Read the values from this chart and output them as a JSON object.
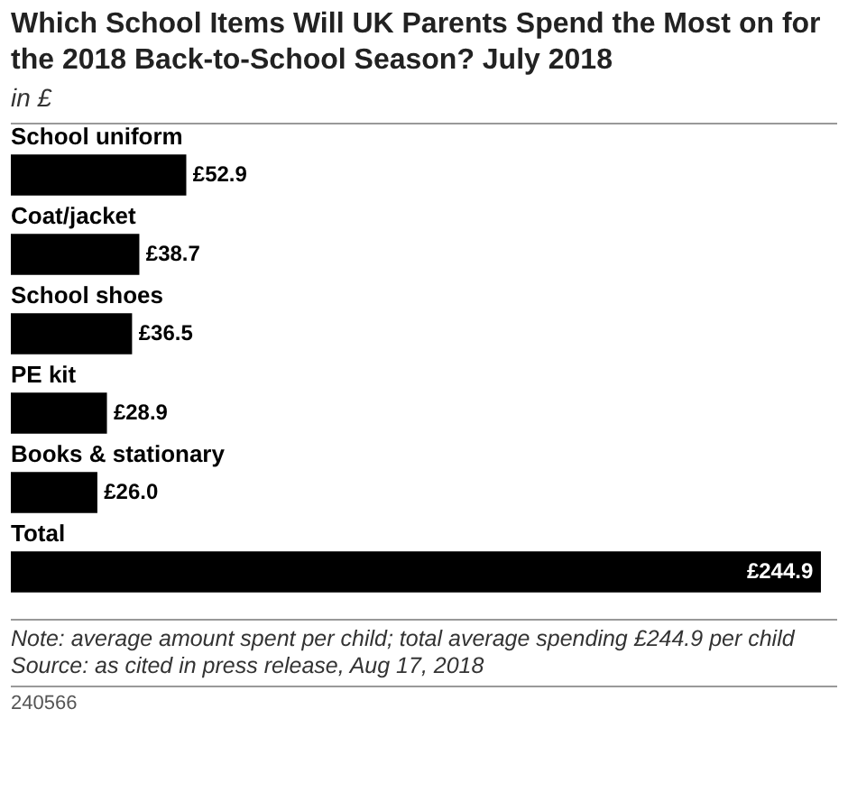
{
  "chart_data": {
    "type": "bar",
    "orientation": "horizontal",
    "title": "Which School Items Will UK Parents Spend the Most on for the 2018 Back-to-School Season? July 2018",
    "subtitle": "in £",
    "categories": [
      "School uniform",
      "Coat/jacket",
      "School shoes",
      "PE kit",
      "Books & stationary",
      "Total"
    ],
    "values": [
      52.9,
      38.7,
      36.5,
      28.9,
      26.0,
      244.9
    ],
    "value_labels": [
      "£52.9",
      "£38.7",
      "£36.5",
      "£28.9",
      "£26.0",
      "£244.9"
    ],
    "color": "#000000",
    "legend": false,
    "tick_labels": false,
    "annotations": [
      "Note: average amount spent per child; total average spending £244.9 per child",
      "Source: as cited in press release, Aug 17, 2018",
      "240566"
    ]
  }
}
